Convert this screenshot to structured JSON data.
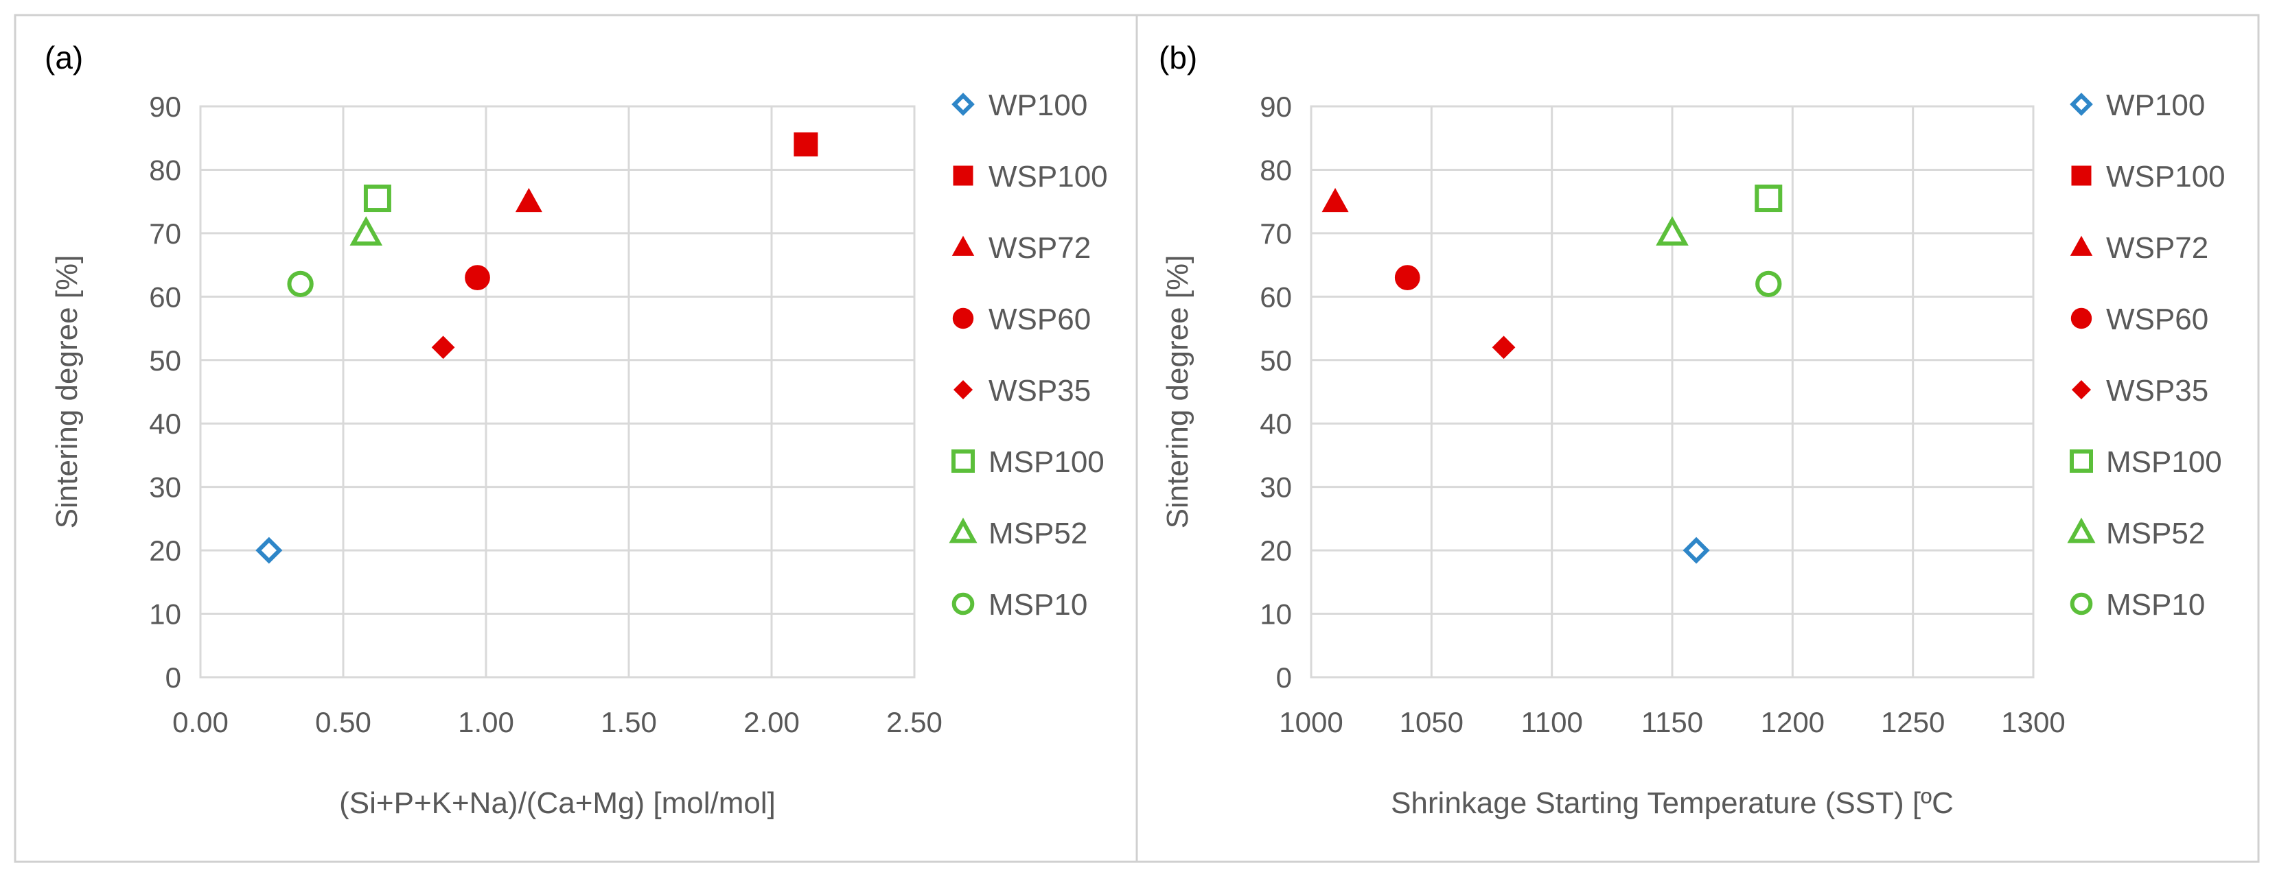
{
  "chart_data": [
    {
      "panel_label": "(a)",
      "type": "scatter",
      "xlabel": "(Si+P+K+Na)/(Ca+Mg) [mol/mol]",
      "ylabel": "Sintering degree [%]",
      "xlim": [
        0,
        2.5
      ],
      "ylim": [
        0,
        90
      ],
      "xticks": [
        "0.00",
        "0.50",
        "1.00",
        "1.50",
        "2.00",
        "2.50"
      ],
      "xtick_values": [
        0,
        0.5,
        1,
        1.5,
        2,
        2.5
      ],
      "yticks": [
        "0",
        "10",
        "20",
        "30",
        "40",
        "50",
        "60",
        "70",
        "80",
        "90"
      ],
      "ytick_values": [
        0,
        10,
        20,
        30,
        40,
        50,
        60,
        70,
        80,
        90
      ],
      "grid": true,
      "legend_position": "right",
      "series": [
        {
          "name": "WP100",
          "marker": "diamond-open",
          "color": "#2E86C8",
          "x": 0.24,
          "y": 20
        },
        {
          "name": "WSP100",
          "marker": "square-filled",
          "color": "#E00000",
          "x": 2.12,
          "y": 84
        },
        {
          "name": "WSP72",
          "marker": "triangle-filled",
          "color": "#E00000",
          "x": 1.15,
          "y": 75
        },
        {
          "name": "WSP60",
          "marker": "circle-filled",
          "color": "#E00000",
          "x": 0.97,
          "y": 63
        },
        {
          "name": "WSP35",
          "marker": "diamond-filled",
          "color": "#E00000",
          "x": 0.85,
          "y": 52
        },
        {
          "name": "MSP100",
          "marker": "square-open",
          "color": "#5BBF3A",
          "x": 0.62,
          "y": 75.5
        },
        {
          "name": "MSP52",
          "marker": "triangle-open",
          "color": "#5BBF3A",
          "x": 0.58,
          "y": 70
        },
        {
          "name": "MSP10",
          "marker": "circle-open",
          "color": "#5BBF3A",
          "x": 0.35,
          "y": 62
        }
      ]
    },
    {
      "panel_label": "(b)",
      "type": "scatter",
      "xlabel": "Shrinkage Starting Temperature (SST) [ºC",
      "ylabel": "Sintering degree [%]",
      "xlim": [
        1000,
        1300
      ],
      "ylim": [
        0,
        90
      ],
      "xticks": [
        "1000",
        "1050",
        "1100",
        "1150",
        "1200",
        "1250",
        "1300"
      ],
      "xtick_values": [
        1000,
        1050,
        1100,
        1150,
        1200,
        1250,
        1300
      ],
      "yticks": [
        "0",
        "10",
        "20",
        "30",
        "40",
        "50",
        "60",
        "70",
        "80",
        "90"
      ],
      "ytick_values": [
        0,
        10,
        20,
        30,
        40,
        50,
        60,
        70,
        80,
        90
      ],
      "grid": true,
      "legend_position": "right",
      "series": [
        {
          "name": "WP100",
          "marker": "diamond-open",
          "color": "#2E86C8",
          "x": 1160,
          "y": 20
        },
        {
          "name": "WSP100",
          "marker": "square-filled",
          "color": "#E00000",
          "x": null,
          "y": null
        },
        {
          "name": "WSP72",
          "marker": "triangle-filled",
          "color": "#E00000",
          "x": 1010,
          "y": 75
        },
        {
          "name": "WSP60",
          "marker": "circle-filled",
          "color": "#E00000",
          "x": 1040,
          "y": 63
        },
        {
          "name": "WSP35",
          "marker": "diamond-filled",
          "color": "#E00000",
          "x": 1080,
          "y": 52
        },
        {
          "name": "MSP100",
          "marker": "square-open",
          "color": "#5BBF3A",
          "x": 1190,
          "y": 75.5
        },
        {
          "name": "MSP52",
          "marker": "triangle-open",
          "color": "#5BBF3A",
          "x": 1150,
          "y": 70
        },
        {
          "name": "MSP10",
          "marker": "circle-open",
          "color": "#5BBF3A",
          "x": 1190,
          "y": 62
        }
      ]
    }
  ]
}
